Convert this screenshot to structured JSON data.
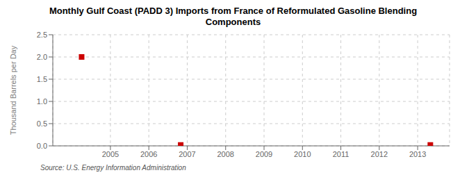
{
  "chart_data": {
    "type": "scatter",
    "title": "Monthly Gulf Coast (PADD 3) Imports from France of Reformulated Gasoline Blending\nComponents",
    "ylabel": "Thousand Barrels per Day",
    "annotations": [
      "Source: U.S. Energy Information Administration"
    ],
    "x": [
      2004.25,
      2006.83,
      2013.33
    ],
    "values": [
      2.0,
      0.02,
      0.02
    ],
    "color": "#cc0000",
    "marker": "square",
    "xlim": [
      2003.5,
      2013.83
    ],
    "ylim": [
      0.0,
      2.5
    ],
    "xticks": [
      2005,
      2006,
      2007,
      2008,
      2009,
      2010,
      2011,
      2012,
      2013
    ],
    "yticks": [
      {
        "value": 0.0,
        "label": "0.0"
      },
      0.5,
      {
        "value": 1.0,
        "label": "1.0"
      },
      1.5,
      {
        "value": 2.0,
        "label": "2.0"
      },
      2.5
    ],
    "grid": true
  }
}
